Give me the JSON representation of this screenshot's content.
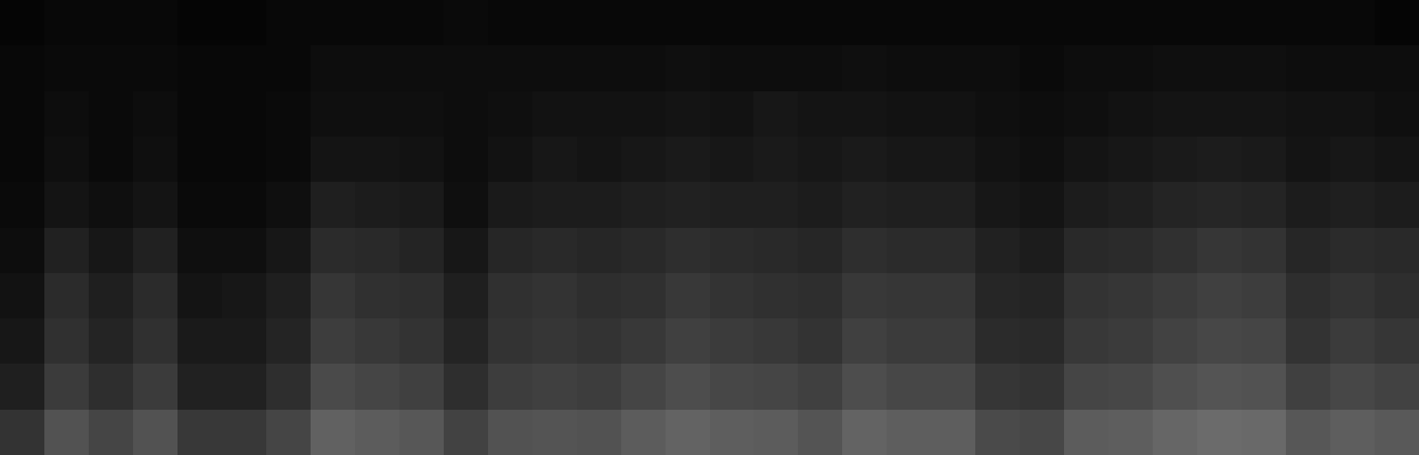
{
  "chart_data": {
    "type": "heatmap",
    "tick_labels": false,
    "color": "#ffffff",
    "zlim": [
      0,
      100
    ],
    "cells": [
      [
        2,
        3,
        3,
        3,
        2,
        2,
        3,
        3,
        3,
        3,
        4,
        3,
        3,
        3,
        3,
        3,
        3,
        3,
        3,
        3,
        3,
        3,
        3,
        3,
        3,
        3,
        3,
        3,
        3,
        3,
        3,
        2
      ],
      [
        3,
        4,
        4,
        4,
        3,
        3,
        3,
        5,
        5,
        5,
        5,
        5,
        5,
        5,
        5,
        6,
        5,
        5,
        5,
        6,
        5,
        5,
        5,
        4,
        5,
        5,
        6,
        6,
        6,
        5,
        5,
        5
      ],
      [
        3,
        5,
        4,
        5,
        3,
        3,
        4,
        6,
        6,
        6,
        5,
        6,
        7,
        7,
        7,
        8,
        7,
        9,
        8,
        8,
        7,
        7,
        6,
        5,
        6,
        7,
        8,
        8,
        8,
        7,
        7,
        6
      ],
      [
        3,
        6,
        4,
        6,
        3,
        3,
        4,
        8,
        8,
        7,
        5,
        7,
        9,
        8,
        9,
        10,
        9,
        10,
        9,
        10,
        9,
        9,
        7,
        6,
        8,
        9,
        10,
        11,
        10,
        8,
        9,
        8
      ],
      [
        4,
        8,
        6,
        8,
        4,
        4,
        6,
        12,
        11,
        10,
        6,
        10,
        11,
        11,
        12,
        13,
        12,
        12,
        11,
        13,
        12,
        12,
        9,
        8,
        11,
        12,
        14,
        15,
        14,
        11,
        12,
        11
      ],
      [
        5,
        13,
        9,
        13,
        6,
        6,
        9,
        17,
        16,
        14,
        9,
        15,
        16,
        15,
        16,
        18,
        17,
        16,
        15,
        18,
        17,
        17,
        13,
        11,
        16,
        17,
        19,
        21,
        20,
        15,
        17,
        16
      ],
      [
        7,
        17,
        12,
        17,
        8,
        9,
        12,
        21,
        19,
        18,
        12,
        19,
        20,
        18,
        19,
        22,
        20,
        19,
        18,
        22,
        21,
        21,
        15,
        14,
        20,
        21,
        23,
        25,
        24,
        18,
        20,
        18
      ],
      [
        9,
        19,
        14,
        19,
        10,
        10,
        14,
        24,
        22,
        20,
        14,
        20,
        21,
        20,
        22,
        25,
        23,
        22,
        20,
        25,
        23,
        23,
        17,
        16,
        22,
        23,
        26,
        28,
        27,
        20,
        23,
        21
      ],
      [
        12,
        23,
        18,
        23,
        13,
        13,
        18,
        29,
        27,
        25,
        18,
        24,
        25,
        24,
        27,
        30,
        28,
        27,
        25,
        30,
        28,
        28,
        21,
        20,
        27,
        28,
        31,
        33,
        32,
        25,
        28,
        26
      ],
      [
        20,
        32,
        27,
        32,
        22,
        22,
        27,
        38,
        36,
        34,
        26,
        32,
        33,
        32,
        36,
        39,
        37,
        36,
        33,
        39,
        37,
        37,
        29,
        28,
        36,
        37,
        40,
        42,
        41,
        34,
        37,
        35
      ]
    ]
  }
}
